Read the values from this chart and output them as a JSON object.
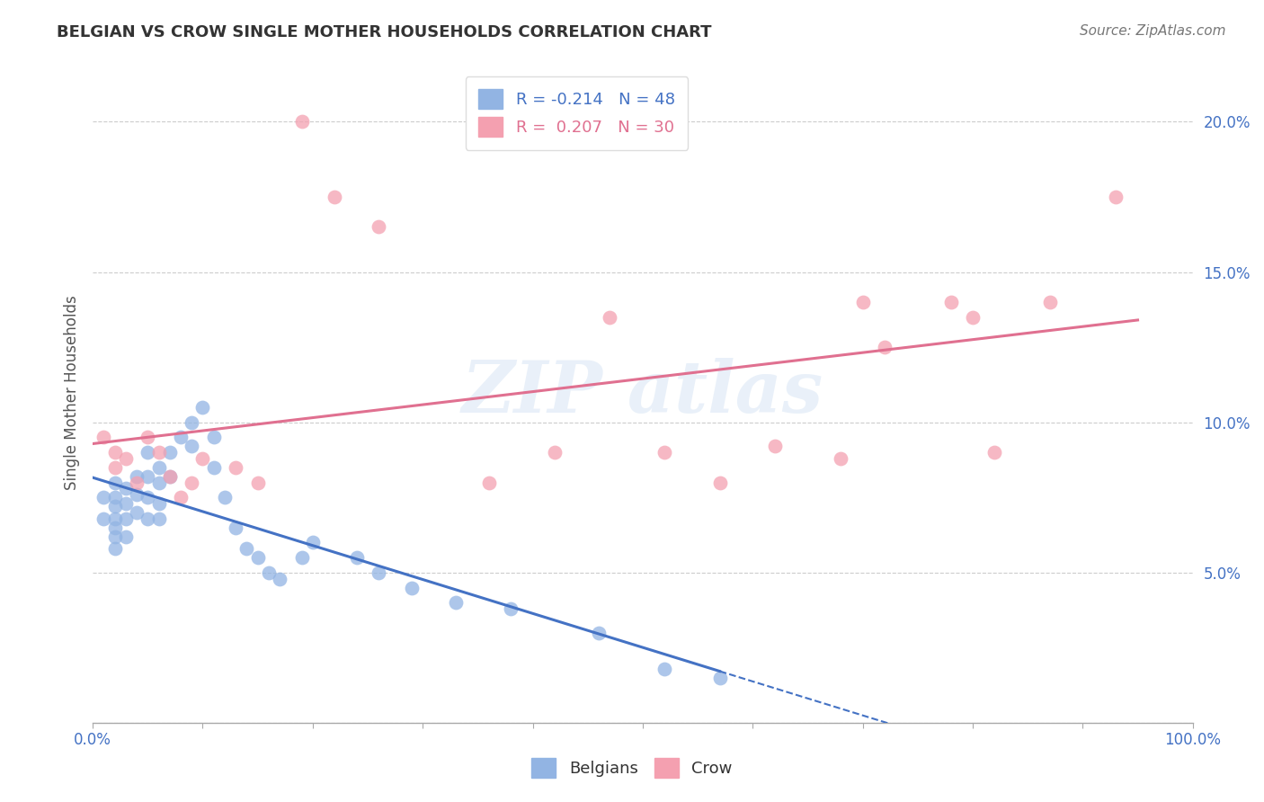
{
  "title": "BELGIAN VS CROW SINGLE MOTHER HOUSEHOLDS CORRELATION CHART",
  "source": "Source: ZipAtlas.com",
  "xlabel": "",
  "ylabel": "Single Mother Households",
  "xlim": [
    0,
    1.0
  ],
  "ylim": [
    0,
    0.22
  ],
  "xticks": [
    0.0,
    0.1,
    0.2,
    0.3,
    0.4,
    0.5,
    0.6,
    0.7,
    0.8,
    0.9,
    1.0
  ],
  "xticklabels": [
    "0.0%",
    "",
    "",
    "",
    "",
    "",
    "",
    "",
    "",
    "",
    "100.0%"
  ],
  "yticks": [
    0.0,
    0.05,
    0.1,
    0.15,
    0.2
  ],
  "yticklabels": [
    "",
    "5.0%",
    "10.0%",
    "15.0%",
    "20.0%"
  ],
  "belgian_R": -0.214,
  "belgian_N": 48,
  "crow_R": 0.207,
  "crow_N": 30,
  "belgian_color": "#92b4e3",
  "crow_color": "#f4a0b0",
  "belgian_line_color": "#4472c4",
  "crow_line_color": "#e07090",
  "belgian_x": [
    0.01,
    0.01,
    0.02,
    0.02,
    0.02,
    0.02,
    0.02,
    0.02,
    0.02,
    0.03,
    0.03,
    0.03,
    0.03,
    0.04,
    0.04,
    0.04,
    0.05,
    0.05,
    0.05,
    0.05,
    0.06,
    0.06,
    0.06,
    0.06,
    0.07,
    0.07,
    0.08,
    0.09,
    0.09,
    0.1,
    0.11,
    0.11,
    0.12,
    0.13,
    0.14,
    0.15,
    0.16,
    0.17,
    0.19,
    0.2,
    0.24,
    0.26,
    0.29,
    0.33,
    0.38,
    0.46,
    0.52,
    0.57
  ],
  "belgian_y": [
    0.075,
    0.068,
    0.08,
    0.075,
    0.072,
    0.068,
    0.065,
    0.062,
    0.058,
    0.078,
    0.073,
    0.068,
    0.062,
    0.082,
    0.076,
    0.07,
    0.09,
    0.082,
    0.075,
    0.068,
    0.085,
    0.08,
    0.073,
    0.068,
    0.09,
    0.082,
    0.095,
    0.1,
    0.092,
    0.105,
    0.095,
    0.085,
    0.075,
    0.065,
    0.058,
    0.055,
    0.05,
    0.048,
    0.055,
    0.06,
    0.055,
    0.05,
    0.045,
    0.04,
    0.038,
    0.03,
    0.018,
    0.015
  ],
  "crow_x": [
    0.01,
    0.02,
    0.02,
    0.03,
    0.04,
    0.05,
    0.06,
    0.07,
    0.08,
    0.09,
    0.1,
    0.13,
    0.15,
    0.19,
    0.22,
    0.26,
    0.36,
    0.42,
    0.47,
    0.52,
    0.57,
    0.62,
    0.68,
    0.7,
    0.72,
    0.78,
    0.8,
    0.82,
    0.87,
    0.93
  ],
  "crow_y": [
    0.095,
    0.09,
    0.085,
    0.088,
    0.08,
    0.095,
    0.09,
    0.082,
    0.075,
    0.08,
    0.088,
    0.085,
    0.08,
    0.2,
    0.175,
    0.165,
    0.08,
    0.09,
    0.135,
    0.09,
    0.08,
    0.092,
    0.088,
    0.14,
    0.125,
    0.14,
    0.135,
    0.09,
    0.14,
    0.175
  ]
}
